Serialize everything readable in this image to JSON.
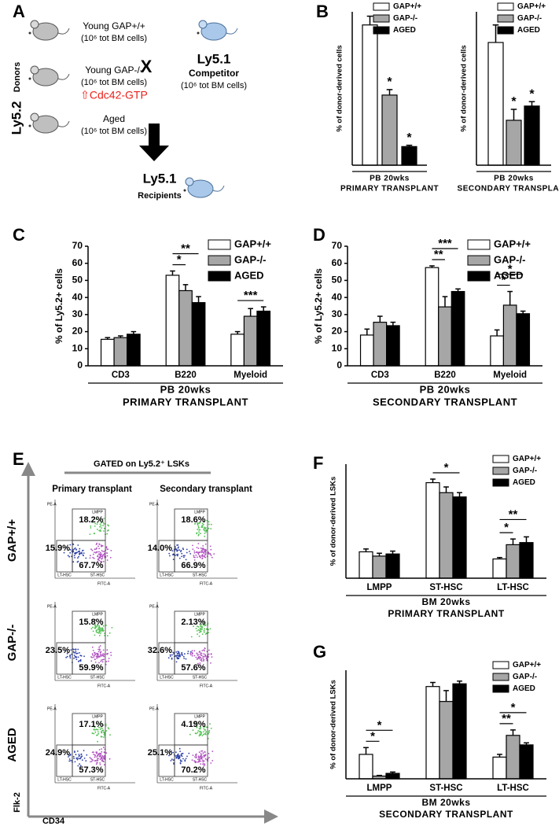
{
  "panels": [
    "A",
    "B",
    "C",
    "D",
    "E",
    "F",
    "G"
  ],
  "panel_a": {
    "donors_label": "Ly5.2",
    "donors_sub": "Donors",
    "donors": [
      {
        "name": "Young GAP+/+",
        "cells": "(10⁶ tot BM cells)"
      },
      {
        "name": "Young GAP-/-",
        "cells": "(10⁶ tot BM cells)",
        "note": "⇧Cdc42-GTP"
      },
      {
        "name": "Aged",
        "cells": "(10⁶ tot BM cells)"
      }
    ],
    "cross": "X",
    "competitor": {
      "strain": "Ly5.1",
      "name": "Competitor",
      "cells": "(10⁶ tot BM cells)"
    },
    "recipients": {
      "strain": "Ly5.1",
      "name": "Recipients"
    }
  },
  "chart_data": [
    {
      "type": "bar",
      "ylabel": "% of donor-derived cells",
      "categories": [
        null
      ],
      "ylim": [
        0,
        70
      ],
      "legend": "upper right",
      "series": [
        {
          "name": "GAP+/+",
          "color": "#ffffff",
          "values": [
            64
          ],
          "errors": [
            4
          ]
        },
        {
          "name": "GAP-/-",
          "color": "#a6a6a6",
          "values": [
            32
          ],
          "errors": [
            2.5
          ]
        },
        {
          "name": "AGED",
          "color": "#000000",
          "values": [
            8.5
          ],
          "errors": [
            0.6
          ]
        }
      ],
      "xlabel": [
        "PB 20wks",
        "PRIMARY TRANSPLANT"
      ],
      "annotations": [
        "*",
        "*"
      ]
    },
    {
      "type": "bar",
      "ylabel": "% of donor-derived cells",
      "categories": [
        null
      ],
      "ylim": [
        0,
        70
      ],
      "legend": "upper right",
      "series": [
        {
          "name": "GAP+/+",
          "color": "#ffffff",
          "values": [
            56
          ],
          "errors": [
            8
          ]
        },
        {
          "name": "GAP-/-",
          "color": "#a6a6a6",
          "values": [
            20.5
          ],
          "errors": [
            5
          ]
        },
        {
          "name": "AGED",
          "color": "#000000",
          "values": [
            27
          ],
          "errors": [
            2
          ]
        }
      ],
      "xlabel": [
        "PB 20wks",
        "SECONDARY TRANSPLANT"
      ],
      "annotations": [
        "*",
        "*"
      ]
    },
    {
      "type": "bar",
      "ylabel": "% of Ly5.2+ cells",
      "categories": [
        "CD3",
        "B220",
        "Myeloid"
      ],
      "ylim": [
        0,
        70
      ],
      "yticks": [
        0,
        10,
        20,
        30,
        40,
        50,
        60,
        70
      ],
      "legend": "upper right",
      "series": [
        {
          "name": "GAP+/+",
          "color": "#ffffff",
          "values": [
            15.5,
            53,
            18.5
          ],
          "errors": [
            1,
            2.5,
            1.5
          ]
        },
        {
          "name": "GAP-/-",
          "color": "#a6a6a6",
          "values": [
            16.5,
            44,
            29
          ],
          "errors": [
            1,
            3.5,
            4.5
          ]
        },
        {
          "name": "AGED",
          "color": "#000000",
          "values": [
            18.5,
            37,
            32
          ],
          "errors": [
            1.5,
            3.5,
            2.5
          ]
        }
      ],
      "xlabel": [
        "PB 20wks",
        "PRIMARY TRANSPLANT"
      ],
      "annotations": [
        "*",
        "**",
        "***"
      ]
    },
    {
      "type": "bar",
      "ylabel": "% of Ly5.2+ cells",
      "categories": [
        "CD3",
        "B220",
        "Myeloid"
      ],
      "ylim": [
        0,
        70
      ],
      "yticks": [
        0,
        10,
        20,
        30,
        40,
        50,
        60,
        70
      ],
      "legend": "upper right",
      "series": [
        {
          "name": "GAP+/+",
          "color": "#ffffff",
          "values": [
            18,
            57.5,
            17.5
          ],
          "errors": [
            3.5,
            1,
            3.5
          ]
        },
        {
          "name": "GAP-/-",
          "color": "#a6a6a6",
          "values": [
            25.5,
            34.5,
            35.5
          ],
          "errors": [
            3.5,
            6,
            8
          ]
        },
        {
          "name": "AGED",
          "color": "#000000",
          "values": [
            23.5,
            43.5,
            30.5
          ],
          "errors": [
            2,
            1.5,
            1.5
          ]
        }
      ],
      "xlabel": [
        "PB 20wks",
        "SECONDARY TRANSPLANT"
      ],
      "annotations": [
        "**",
        "***",
        "*",
        "*"
      ]
    },
    {
      "type": "bar",
      "ylabel": "% of donor-derived LSKs",
      "categories": [
        "LMPP",
        "ST-HSC",
        "LT-HSC"
      ],
      "ylim": [
        0,
        80
      ],
      "legend": "upper right",
      "series": [
        {
          "name": "GAP+/+",
          "color": "#ffffff",
          "values": [
            18.5,
            67,
            13.5
          ],
          "errors": [
            2,
            2.5,
            1
          ]
        },
        {
          "name": "GAP-/-",
          "color": "#a6a6a6",
          "values": [
            15.5,
            60,
            23.5
          ],
          "errors": [
            2,
            4,
            4
          ]
        },
        {
          "name": "AGED",
          "color": "#000000",
          "values": [
            17,
            57,
            25
          ],
          "errors": [
            2,
            3,
            4
          ]
        }
      ],
      "xlabel": [
        "BM 20wks",
        "PRIMARY TRANSPLANT"
      ],
      "annotations": [
        "*",
        "*",
        "**"
      ]
    },
    {
      "type": "bar",
      "ylabel": "% of donor-derived LSKs",
      "categories": [
        "LMPP",
        "ST-HSC",
        "LT-HSC"
      ],
      "ylim": [
        0,
        80
      ],
      "legend": "upper right",
      "series": [
        {
          "name": "GAP+/+",
          "color": "#ffffff",
          "values": [
            18,
            68,
            16
          ],
          "errors": [
            5,
            3,
            2
          ]
        },
        {
          "name": "GAP-/-",
          "color": "#a6a6a6",
          "values": [
            2,
            57,
            32
          ],
          "errors": [
            0.5,
            8,
            4
          ]
        },
        {
          "name": "AGED",
          "color": "#000000",
          "values": [
            4,
            70,
            25
          ],
          "errors": [
            1,
            2,
            1.5
          ]
        }
      ],
      "xlabel": [
        "BM 20wks",
        "SECONDARY TRANSPLANT"
      ],
      "annotations": [
        "*",
        "*",
        "**",
        "*"
      ]
    }
  ],
  "panel_e": {
    "gate_title": "GATED on Ly5.2⁺ LSKs",
    "columns": [
      "Primary transplant",
      "Secondary transplant"
    ],
    "x_axis": "CD34",
    "y_axis": "Flk-2",
    "plot_x_axis": "FITC-A",
    "plot_y_axis": "PE-A",
    "gate_labels": {
      "lmpp": "LMPP",
      "lt": "LT-HSC",
      "st": "ST-HSC"
    },
    "rows": [
      {
        "label": "GAP+/+",
        "plots": [
          {
            "lt": "15.9%",
            "lmpp": "18.2%",
            "st": "67.7%"
          },
          {
            "lt": "14.0%",
            "lmpp": "18.6%",
            "st": "66.9%"
          }
        ]
      },
      {
        "label": "GAP-/-",
        "plots": [
          {
            "lt": "23.5%",
            "lmpp": "15.8%",
            "st": "59.9%"
          },
          {
            "lt": "32.6%",
            "lmpp": "2.13%",
            "st": "57.6%"
          }
        ]
      },
      {
        "label": "AGED",
        "plots": [
          {
            "lt": "24.9%",
            "lmpp": "17.1%",
            "st": "57.3%"
          },
          {
            "lt": "25.1%",
            "lmpp": "4.19%",
            "st": "70.2%"
          }
        ]
      }
    ]
  }
}
